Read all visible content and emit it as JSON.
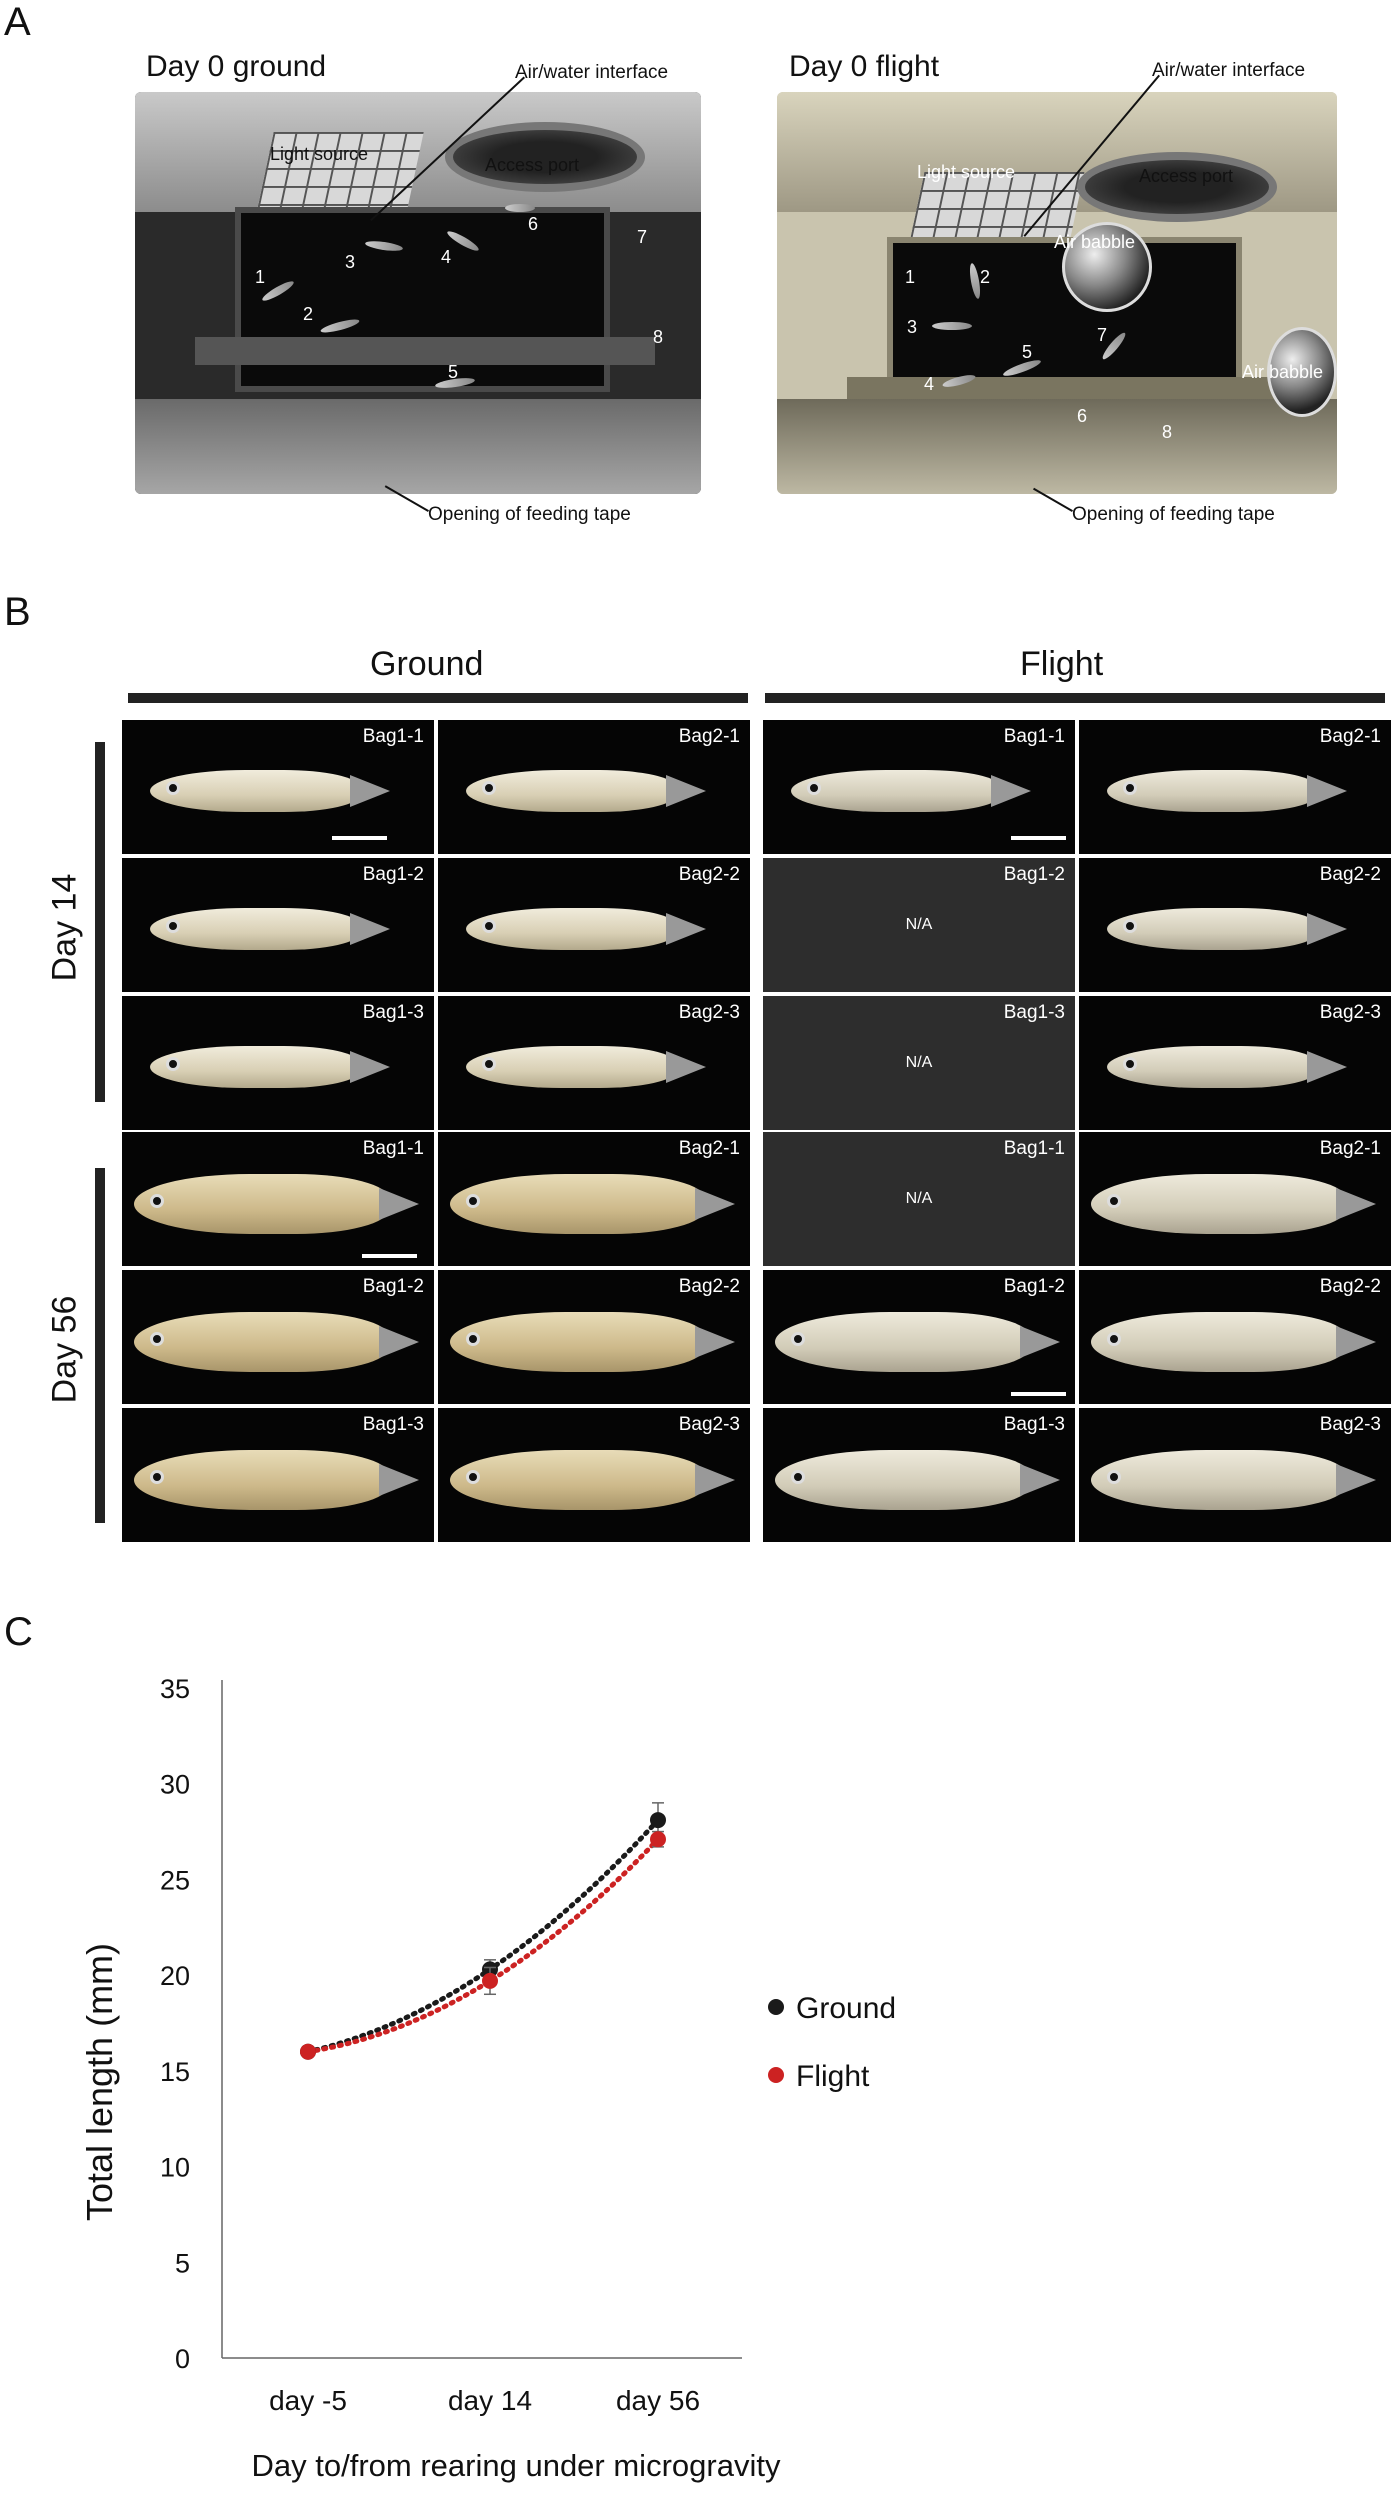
{
  "panels": {
    "a": "A",
    "b": "B",
    "c": "C"
  },
  "panel_a": {
    "left_title": "Day 0 ground",
    "right_title": "Day 0 flight",
    "left": {
      "air_water_interface": "Air/water interface",
      "light_source": "Light source",
      "access_port": "Access port",
      "opening_feeding_tape": "Opening of feeding tape",
      "fish_numbers": [
        "1",
        "2",
        "3",
        "4",
        "5",
        "6",
        "7",
        "8"
      ]
    },
    "right": {
      "air_water_interface": "Air/water interface",
      "light_source": "Light source",
      "access_port": "Access port",
      "air_babble_1": "Air babble",
      "air_babble_2": "Air babble",
      "opening_feeding_tape": "Opening of feeding tape",
      "fish_numbers": [
        "1",
        "2",
        "3",
        "4",
        "5",
        "6",
        "7",
        "8"
      ]
    }
  },
  "panel_b": {
    "ground_title": "Ground",
    "flight_title": "Flight",
    "day14_label": "Day 14",
    "day56_label": "Day 56",
    "na_text": "N/A",
    "ground_day14": [
      "Bag1-1",
      "Bag2-1",
      "Bag1-2",
      "Bag2-2",
      "Bag1-3",
      "Bag2-3"
    ],
    "flight_day14": [
      "Bag1-1",
      "Bag2-1",
      "Bag1-2",
      "Bag2-2",
      "Bag1-3",
      "Bag2-3"
    ],
    "ground_day56": [
      "Bag1-1",
      "Bag2-1",
      "Bag1-2",
      "Bag2-2",
      "Bag1-3",
      "Bag2-3"
    ],
    "flight_day56": [
      "Bag1-1",
      "Bag2-1",
      "Bag1-2",
      "Bag2-2",
      "Bag1-3",
      "Bag2-3"
    ]
  },
  "chart_data": {
    "type": "scatter",
    "xlabel": "Day to/from rearing under microgravity",
    "ylabel": "Total length (mm)",
    "categories": [
      "day -5",
      "day 14",
      "day 56"
    ],
    "ylim": [
      0,
      35
    ],
    "yticks": [
      "0",
      "5",
      "10",
      "15",
      "20",
      "25",
      "30",
      "35"
    ],
    "grid": false,
    "legend_position": "right",
    "trendline": "dotted",
    "series": [
      {
        "name": "Ground",
        "color": "#1a1a1a",
        "values": [
          16.0,
          20.3,
          28.1
        ],
        "errors": [
          0,
          0.5,
          0.9
        ]
      },
      {
        "name": "Flight",
        "color": "#cc2222",
        "values": [
          16.0,
          19.7,
          27.1
        ],
        "errors": [
          0,
          0.7,
          0.4
        ]
      }
    ]
  }
}
